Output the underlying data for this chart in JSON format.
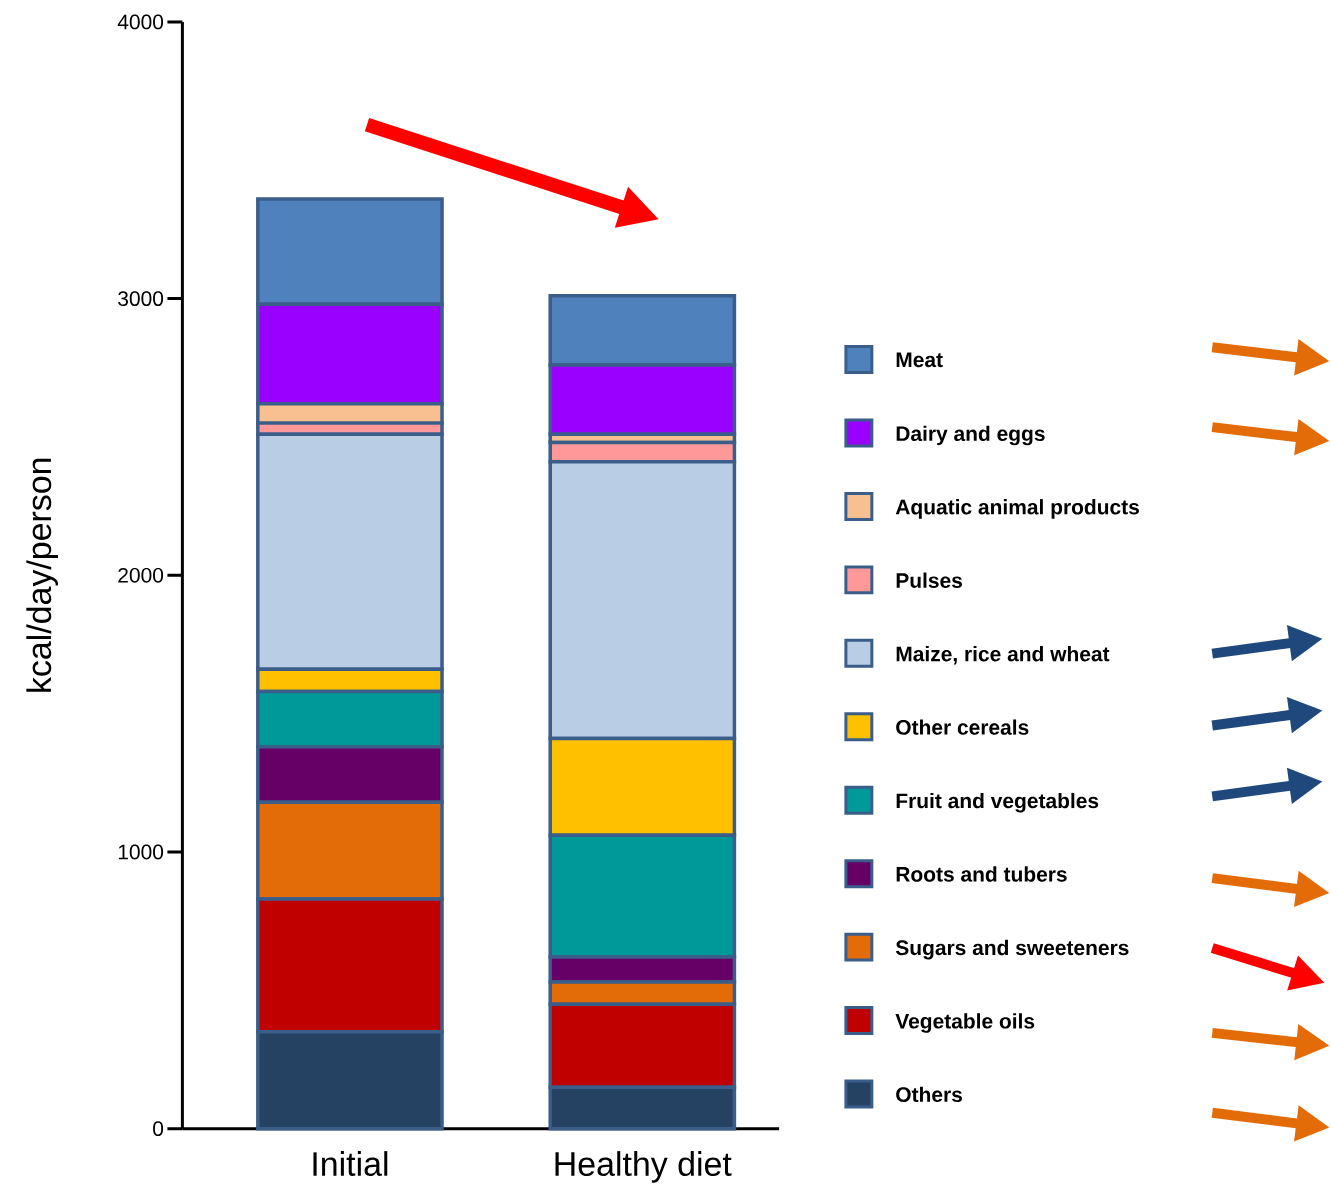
{
  "chart_data": {
    "type": "bar",
    "stacked": true,
    "ylabel": "kcal/day/person",
    "categories": [
      "Initial",
      "Healthy diet"
    ],
    "ylim": [
      0,
      4000
    ],
    "yticks": [
      0,
      1000,
      2000,
      3000,
      4000
    ],
    "legend": "right",
    "series": [
      {
        "name": "Others",
        "color": "#264263",
        "values": [
          350,
          150
        ]
      },
      {
        "name": "Vegetable oils",
        "color": "#c00000",
        "values": [
          480,
          300
        ]
      },
      {
        "name": "Sugars and sweeteners",
        "color": "#e36c09",
        "values": [
          350,
          80
        ]
      },
      {
        "name": "Roots and tubers",
        "color": "#660066",
        "values": [
          200,
          90
        ]
      },
      {
        "name": "Fruit and vegetables",
        "color": "#009999",
        "values": [
          200,
          440
        ]
      },
      {
        "name": "Other cereals",
        "color": "#ffc000",
        "values": [
          80,
          350
        ]
      },
      {
        "name": "Maize, rice and wheat",
        "color": "#b9cde5",
        "values": [
          850,
          1000
        ]
      },
      {
        "name": "Pulses",
        "color": "#ff9999",
        "values": [
          40,
          70
        ]
      },
      {
        "name": "Aquatic animal products",
        "color": "#f8c090",
        "values": [
          70,
          30
        ]
      },
      {
        "name": "Dairy and eggs",
        "color": "#9900ff",
        "values": [
          360,
          250
        ]
      },
      {
        "name": "Meat",
        "color": "#4f81bd",
        "values": [
          380,
          250
        ]
      }
    ]
  }
}
